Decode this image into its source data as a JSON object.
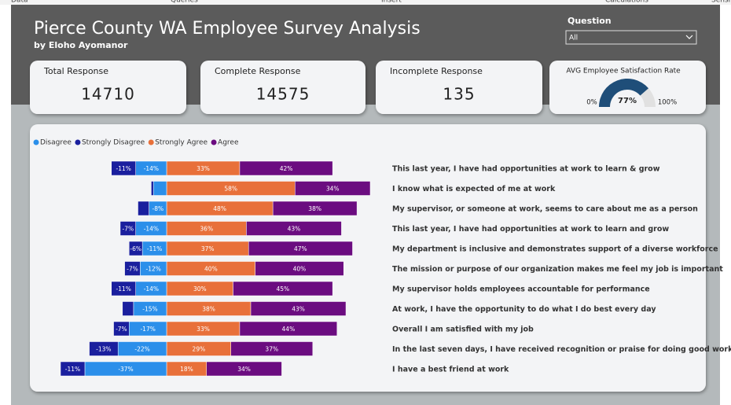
{
  "ribbon": [
    "Data",
    "Queries",
    "Insert",
    "Calculations",
    "Sensi"
  ],
  "header": {
    "title": "Pierce County WA Employee Survey Analysis",
    "subtitle": "by Eloho Ayomanor"
  },
  "filter": {
    "label": "Question",
    "value": "All"
  },
  "cards": [
    {
      "label": "Total Response",
      "value": 14710
    },
    {
      "label": "Complete Response",
      "value": 14575
    },
    {
      "label": "Incomplete Response",
      "value": 135
    }
  ],
  "gauge": {
    "title": "AVG Employee Satisfaction Rate",
    "value": 77,
    "value_label": "77%",
    "min": 0,
    "min_label": "0%",
    "max": 100,
    "max_label": "100%",
    "color": "#1f4e79",
    "track_color": "#e1e1e1"
  },
  "chart_data": {
    "type": "diverging_bar",
    "categories": [
      "This last year, I have had opportunities at work to learn & grow",
      "I know what is expected of me at work",
      "My supervisor, or someone at work, seems to care about me as a person",
      "This last year, I have had opportunities at work to learn and grow",
      "My department is inclusive and demonstrates support of a diverse workforce",
      "The mission or purpose of our organization makes me feel my job is important",
      "My supervisor holds employees accountable for performance",
      "At work, I have the opportunity to do what I do best every day",
      "Overall I am satisfied with my job",
      "In the last seven days, I have received recognition or praise for doing good work",
      "I have a best friend at work"
    ],
    "series": [
      {
        "name": "Disagree",
        "color": "#2b8fea",
        "values": [
          -14,
          -6,
          -8,
          -14,
          -11,
          -12,
          -14,
          -15,
          -17,
          -22,
          -37
        ],
        "value_labels": [
          "-14%",
          null,
          "-8%",
          "-14%",
          "-11%",
          "-12%",
          "-14%",
          "-15%",
          "-17%",
          "-22%",
          "-37%"
        ]
      },
      {
        "name": "Strongly Disagree",
        "color": "#1a1f9e",
        "values": [
          -11,
          -1,
          -5,
          -7,
          -6,
          -7,
          -11,
          -5,
          -7,
          -13,
          -11
        ],
        "value_labels": [
          "-11%",
          null,
          null,
          "-7%",
          "-6%",
          "-7%",
          "-11%",
          null,
          "-7%",
          "-13%",
          "-11%"
        ]
      },
      {
        "name": "Strongly Agree",
        "color": "#e8703a",
        "values": [
          33,
          58,
          48,
          36,
          37,
          40,
          30,
          38,
          33,
          29,
          18
        ],
        "value_labels": [
          "33%",
          "58%",
          "48%",
          "36%",
          "37%",
          "40%",
          "30%",
          "38%",
          "33%",
          "29%",
          "18%"
        ]
      },
      {
        "name": "Agree",
        "color": "#6b0c80",
        "values": [
          42,
          34,
          38,
          43,
          47,
          40,
          45,
          43,
          44,
          37,
          34
        ],
        "value_labels": [
          "42%",
          "34%",
          "38%",
          "43%",
          "47%",
          "40%",
          "45%",
          "43%",
          "44%",
          "37%",
          "34%"
        ]
      }
    ],
    "legend": "top-left"
  }
}
